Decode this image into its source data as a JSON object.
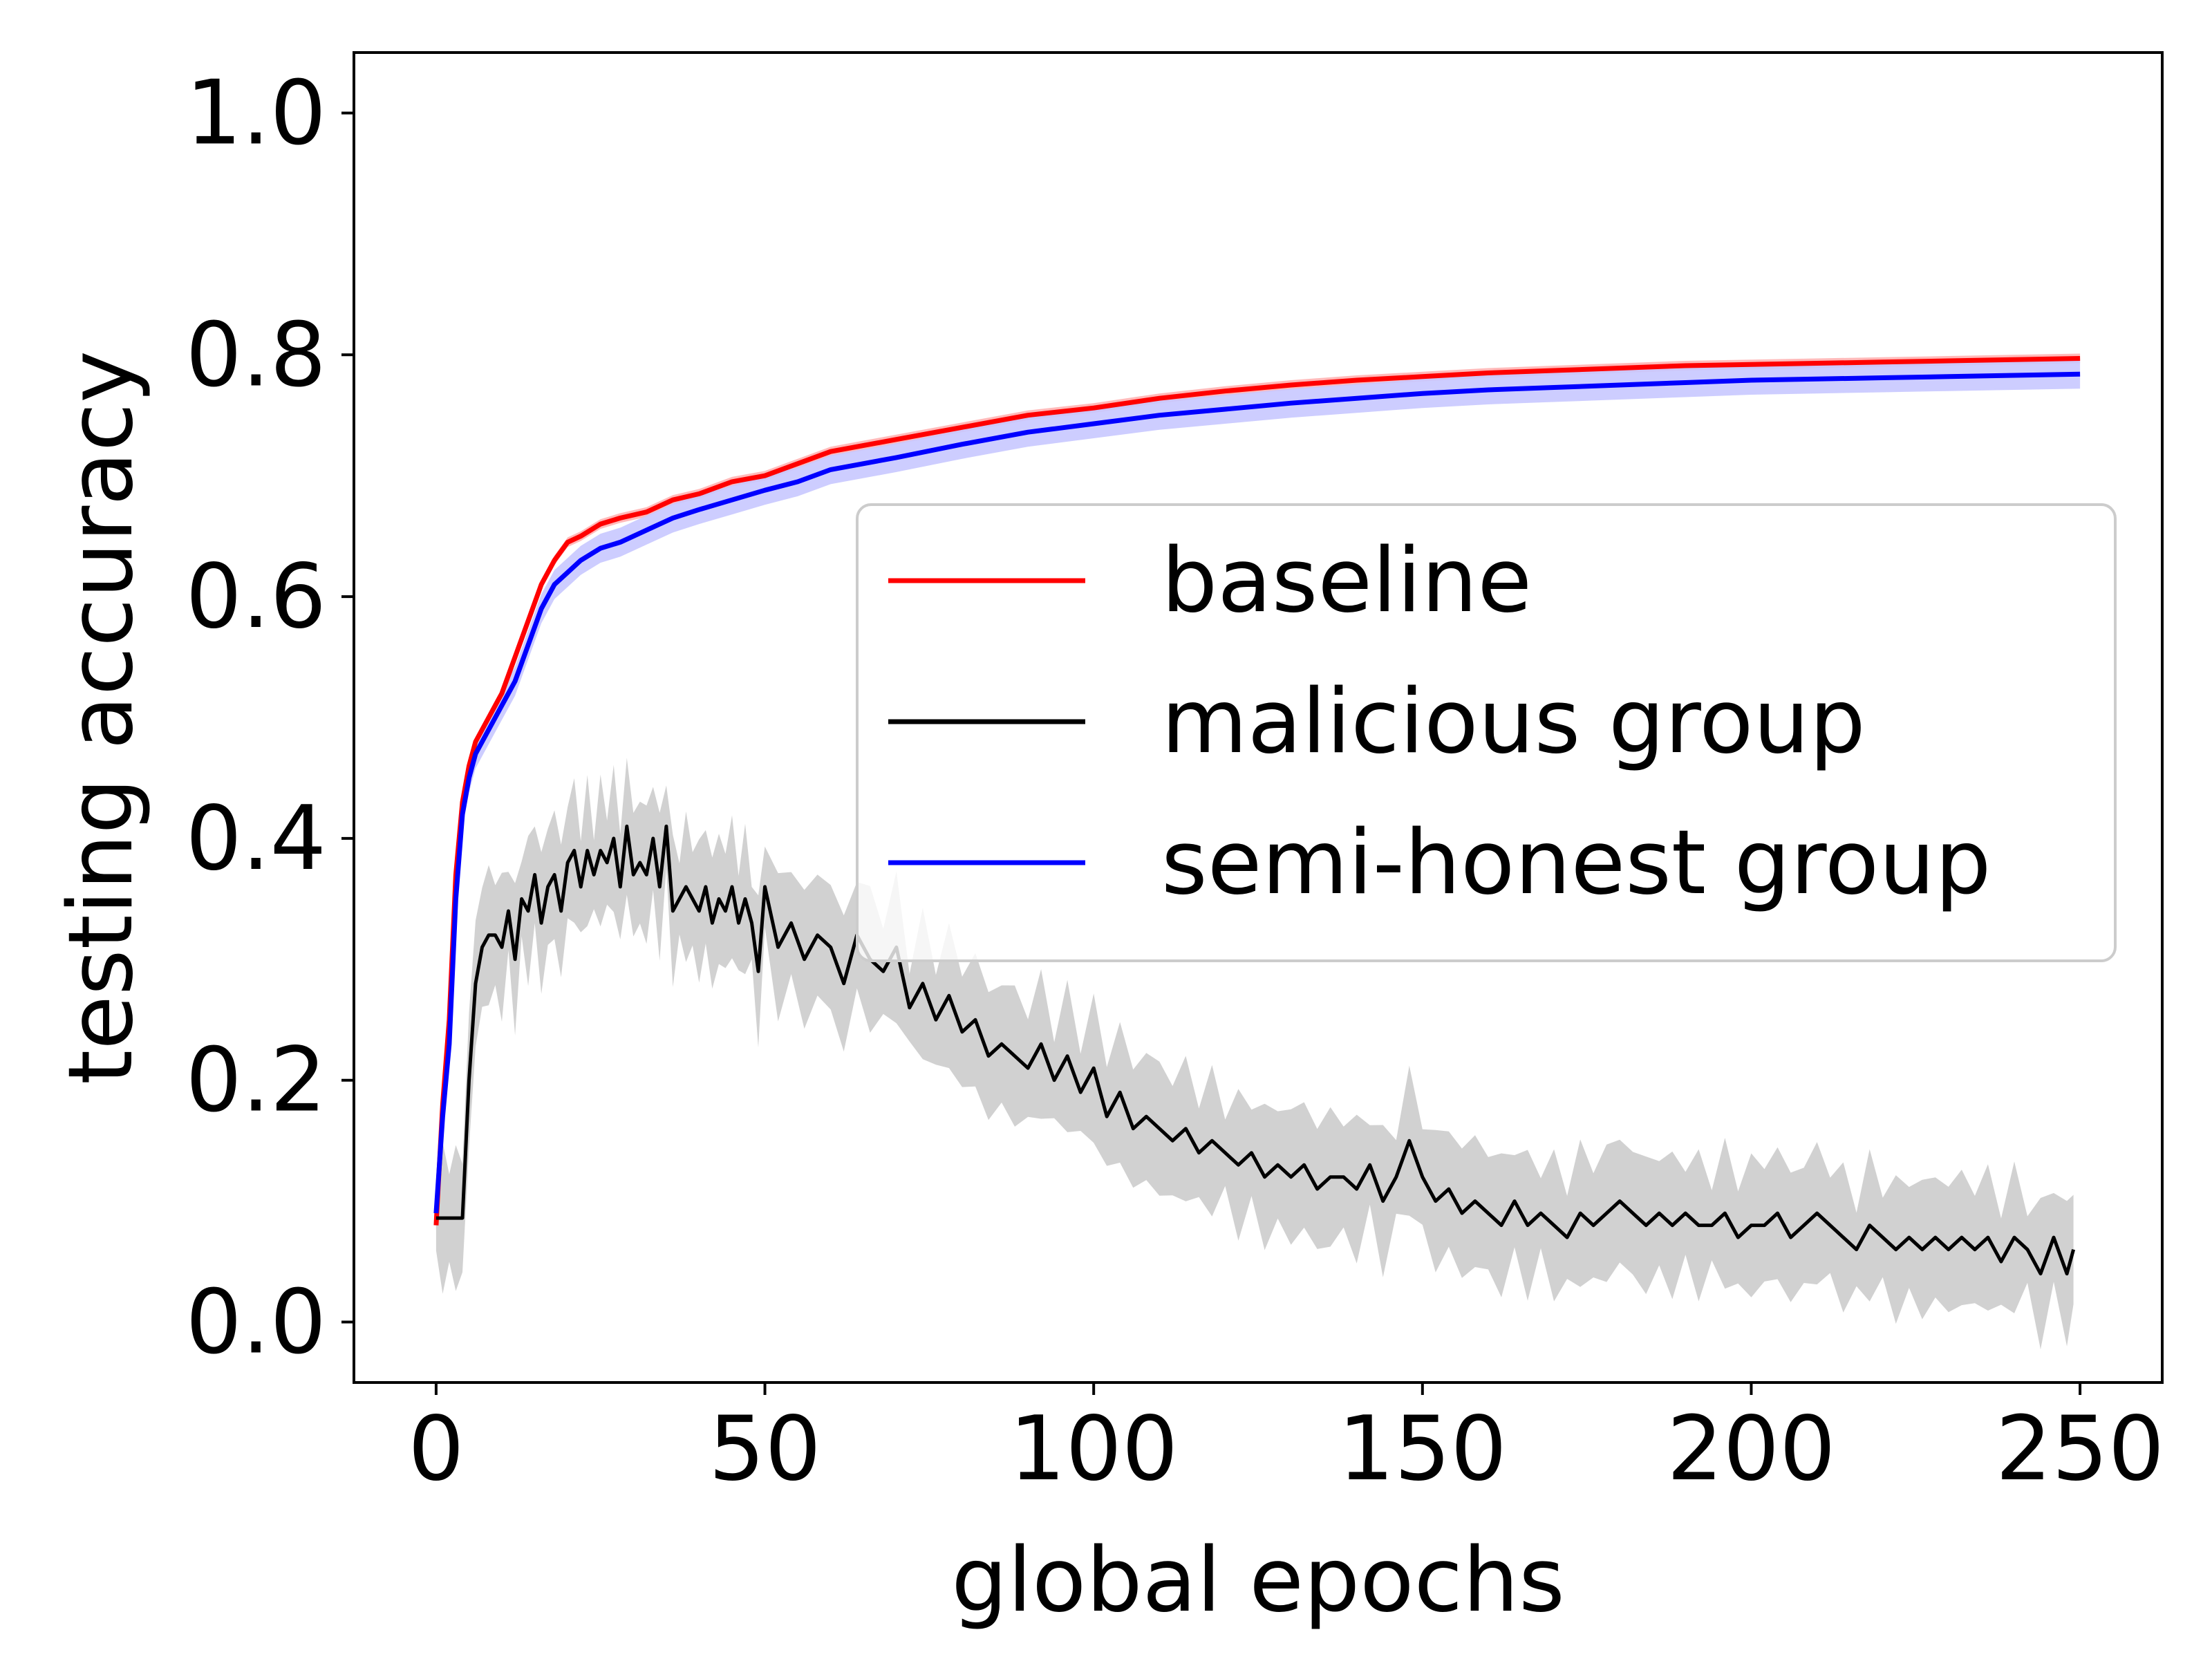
{
  "chart_data": {
    "type": "line",
    "title": "",
    "xlabel": "global epochs",
    "ylabel": "testing accuracy",
    "xlim": [
      -12.5,
      262.5
    ],
    "ylim": [
      -0.05,
      1.05
    ],
    "xticks": [
      0,
      50,
      100,
      150,
      200,
      250
    ],
    "xtick_labels": [
      "0",
      "50",
      "100",
      "150",
      "200",
      "250"
    ],
    "yticks": [
      0.0,
      0.2,
      0.4,
      0.6,
      0.8,
      1.0
    ],
    "ytick_labels": [
      "0.0",
      "0.2",
      "0.4",
      "0.6",
      "0.8",
      "1.0"
    ],
    "grid": false,
    "legend_position": "center-right",
    "series": [
      {
        "name": "baseline",
        "color": "#ff0000",
        "band_color": "#ffb3b3",
        "x": [
          0,
          1,
          2,
          3,
          4,
          5,
          6,
          8,
          10,
          12,
          14,
          16,
          18,
          20,
          22,
          25,
          28,
          32,
          36,
          40,
          45,
          50,
          55,
          60,
          70,
          80,
          90,
          100,
          110,
          120,
          130,
          140,
          150,
          160,
          170,
          180,
          190,
          200,
          210,
          220,
          230,
          240,
          250
        ],
        "y": [
          0.08,
          0.18,
          0.25,
          0.37,
          0.43,
          0.46,
          0.48,
          0.5,
          0.52,
          0.55,
          0.58,
          0.61,
          0.63,
          0.645,
          0.65,
          0.66,
          0.665,
          0.67,
          0.68,
          0.685,
          0.695,
          0.7,
          0.71,
          0.72,
          0.73,
          0.74,
          0.75,
          0.756,
          0.764,
          0.77,
          0.775,
          0.779,
          0.782,
          0.785,
          0.787,
          0.789,
          0.791,
          0.792,
          0.793,
          0.794,
          0.795,
          0.796,
          0.797
        ],
        "band": 0.004
      },
      {
        "name": "malicious group",
        "color": "#000000",
        "band_color": "#cccccc",
        "x": [
          0,
          1,
          2,
          3,
          4,
          5,
          6,
          7,
          8,
          9,
          10,
          11,
          12,
          13,
          14,
          15,
          16,
          17,
          18,
          19,
          20,
          21,
          22,
          23,
          24,
          25,
          26,
          27,
          28,
          29,
          30,
          31,
          32,
          33,
          34,
          35,
          36,
          37,
          38,
          39,
          40,
          41,
          42,
          43,
          44,
          45,
          46,
          47,
          48,
          49,
          50,
          52,
          54,
          56,
          58,
          60,
          62,
          64,
          66,
          68,
          70,
          72,
          74,
          76,
          78,
          80,
          82,
          84,
          86,
          88,
          90,
          92,
          94,
          96,
          98,
          100,
          102,
          104,
          106,
          108,
          110,
          112,
          114,
          116,
          118,
          120,
          122,
          124,
          126,
          128,
          130,
          132,
          134,
          136,
          138,
          140,
          142,
          144,
          146,
          148,
          150,
          152,
          154,
          156,
          158,
          160,
          162,
          164,
          166,
          168,
          170,
          172,
          174,
          176,
          178,
          180,
          182,
          184,
          186,
          188,
          190,
          192,
          194,
          196,
          198,
          200,
          202,
          204,
          206,
          208,
          210,
          212,
          214,
          216,
          218,
          220,
          222,
          224,
          226,
          228,
          230,
          232,
          234,
          236,
          238,
          240,
          242,
          244,
          246,
          248,
          249
        ],
        "y": [
          0.086,
          0.086,
          0.086,
          0.086,
          0.086,
          0.2,
          0.28,
          0.31,
          0.32,
          0.32,
          0.31,
          0.34,
          0.3,
          0.35,
          0.34,
          0.37,
          0.33,
          0.36,
          0.37,
          0.34,
          0.38,
          0.39,
          0.36,
          0.39,
          0.37,
          0.39,
          0.38,
          0.4,
          0.36,
          0.41,
          0.37,
          0.38,
          0.37,
          0.4,
          0.36,
          0.41,
          0.34,
          0.35,
          0.36,
          0.35,
          0.34,
          0.36,
          0.33,
          0.35,
          0.34,
          0.36,
          0.33,
          0.35,
          0.33,
          0.29,
          0.36,
          0.31,
          0.33,
          0.3,
          0.32,
          0.31,
          0.28,
          0.32,
          0.3,
          0.29,
          0.31,
          0.26,
          0.28,
          0.25,
          0.27,
          0.24,
          0.25,
          0.22,
          0.23,
          0.22,
          0.21,
          0.23,
          0.2,
          0.22,
          0.19,
          0.21,
          0.17,
          0.19,
          0.16,
          0.17,
          0.16,
          0.15,
          0.16,
          0.14,
          0.15,
          0.14,
          0.13,
          0.14,
          0.12,
          0.13,
          0.12,
          0.13,
          0.11,
          0.12,
          0.12,
          0.11,
          0.13,
          0.1,
          0.12,
          0.15,
          0.12,
          0.1,
          0.11,
          0.09,
          0.1,
          0.09,
          0.08,
          0.1,
          0.08,
          0.09,
          0.08,
          0.07,
          0.09,
          0.08,
          0.09,
          0.1,
          0.09,
          0.08,
          0.09,
          0.08,
          0.09,
          0.08,
          0.08,
          0.09,
          0.07,
          0.08,
          0.08,
          0.09,
          0.07,
          0.08,
          0.09,
          0.08,
          0.07,
          0.06,
          0.08,
          0.07,
          0.06,
          0.07,
          0.06,
          0.07,
          0.06,
          0.07,
          0.06,
          0.07,
          0.05,
          0.07,
          0.06,
          0.04,
          0.07,
          0.04,
          0.06
        ],
        "band": 0.045
      },
      {
        "name": "semi-honest group",
        "color": "#0000ff",
        "band_color": "#c8c8ff",
        "x": [
          0,
          1,
          2,
          3,
          4,
          5,
          6,
          8,
          10,
          12,
          14,
          16,
          18,
          20,
          22,
          25,
          28,
          32,
          36,
          40,
          45,
          50,
          55,
          60,
          70,
          80,
          90,
          100,
          110,
          120,
          130,
          140,
          150,
          160,
          170,
          180,
          190,
          200,
          210,
          220,
          230,
          240,
          250
        ],
        "y": [
          0.09,
          0.17,
          0.23,
          0.35,
          0.42,
          0.45,
          0.47,
          0.49,
          0.51,
          0.53,
          0.56,
          0.59,
          0.61,
          0.62,
          0.63,
          0.64,
          0.645,
          0.655,
          0.665,
          0.672,
          0.68,
          0.688,
          0.695,
          0.705,
          0.715,
          0.726,
          0.736,
          0.743,
          0.75,
          0.755,
          0.76,
          0.764,
          0.768,
          0.771,
          0.773,
          0.775,
          0.777,
          0.779,
          0.78,
          0.781,
          0.782,
          0.783,
          0.784
        ],
        "band": 0.012
      }
    ]
  }
}
